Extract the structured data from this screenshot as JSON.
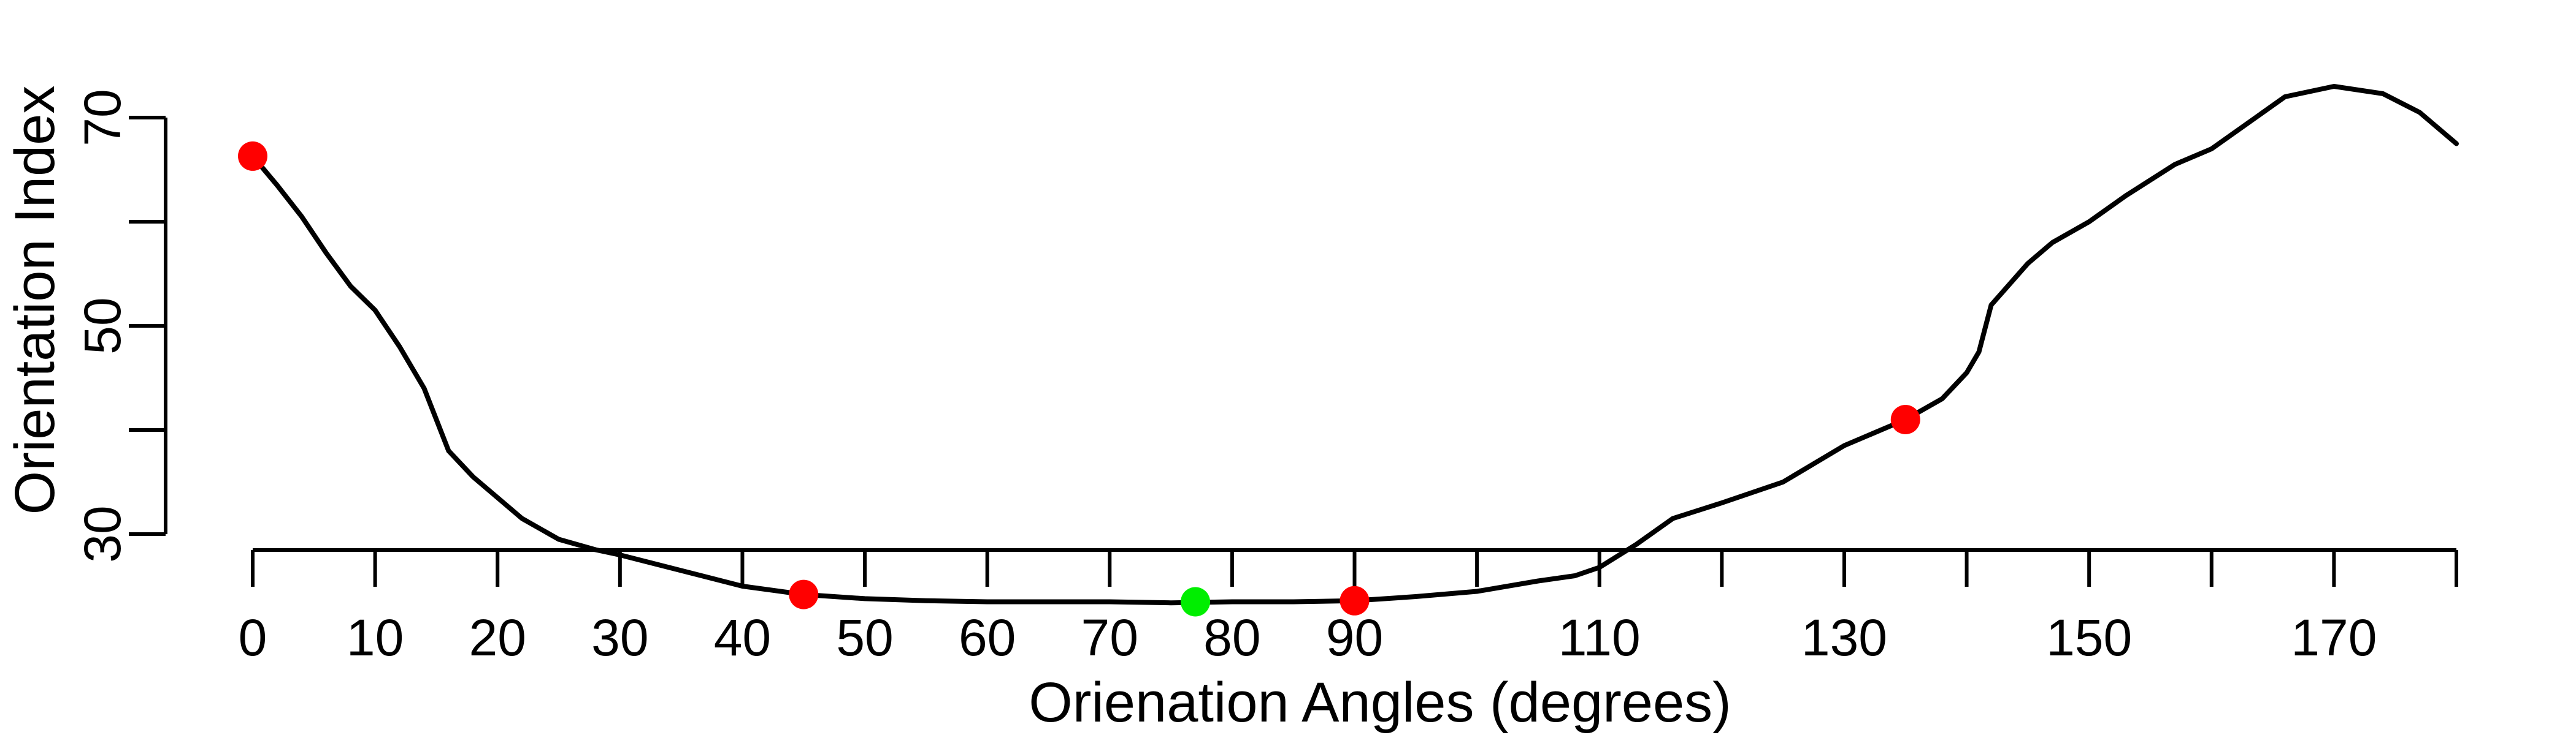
{
  "chart_data": {
    "type": "line",
    "xlabel": "Orienation Angles (degrees)",
    "ylabel": "Orientation Index",
    "xlim": [
      0,
      180
    ],
    "ylim": [
      22,
      76
    ],
    "x_ticks": [
      0,
      10,
      20,
      30,
      40,
      50,
      60,
      70,
      80,
      90,
      100,
      110,
      120,
      130,
      140,
      150,
      160,
      170,
      180
    ],
    "x_tick_labels": [
      "0",
      "10",
      "20",
      "30",
      "40",
      "50",
      "60",
      "70",
      "80",
      "90",
      "",
      "110",
      "",
      "130",
      "",
      "150",
      "",
      "170",
      ""
    ],
    "y_ticks": [
      30,
      40,
      50,
      60,
      70
    ],
    "y_tick_labels": [
      "30",
      "",
      "50",
      "",
      "70"
    ],
    "grid": false,
    "series": [
      {
        "color": "#000000",
        "x": [
          0,
          2,
          4,
          6,
          8,
          10,
          12,
          14,
          16,
          18,
          20,
          22,
          25,
          28,
          30,
          35,
          40,
          45,
          50,
          55,
          60,
          65,
          70,
          75,
          80,
          85,
          90,
          95,
          100,
          105,
          108,
          110,
          113,
          116,
          120,
          125,
          130,
          135,
          138,
          140,
          141,
          142,
          145,
          147,
          150,
          153,
          157,
          160,
          163,
          166,
          170,
          174,
          177,
          179,
          180
        ],
        "y": [
          66.3,
          63.5,
          60.5,
          57,
          53.8,
          51.5,
          48,
          44,
          38,
          35.5,
          33.5,
          31.5,
          29.5,
          28.5,
          28,
          26.5,
          25,
          24.2,
          23.8,
          23.6,
          23.5,
          23.5,
          23.5,
          23.4,
          23.5,
          23.5,
          23.6,
          24,
          24.5,
          25.5,
          26,
          26.8,
          29,
          31.5,
          33,
          35,
          38.5,
          41,
          43,
          45.5,
          47.5,
          52,
          56,
          58,
          60,
          62.5,
          65.5,
          67,
          69.5,
          72,
          73,
          72.3,
          70.5,
          68.5,
          67.5
        ]
      }
    ],
    "markers": [
      {
        "x": 0,
        "y": 66.3,
        "color": "#ff0000"
      },
      {
        "x": 45,
        "y": 24.2,
        "color": "#ff0000"
      },
      {
        "x": 77,
        "y": 23.5,
        "color": "#00ee00"
      },
      {
        "x": 90,
        "y": 23.6,
        "color": "#ff0000"
      },
      {
        "x": 135,
        "y": 41,
        "color": "#ff0000"
      }
    ]
  }
}
